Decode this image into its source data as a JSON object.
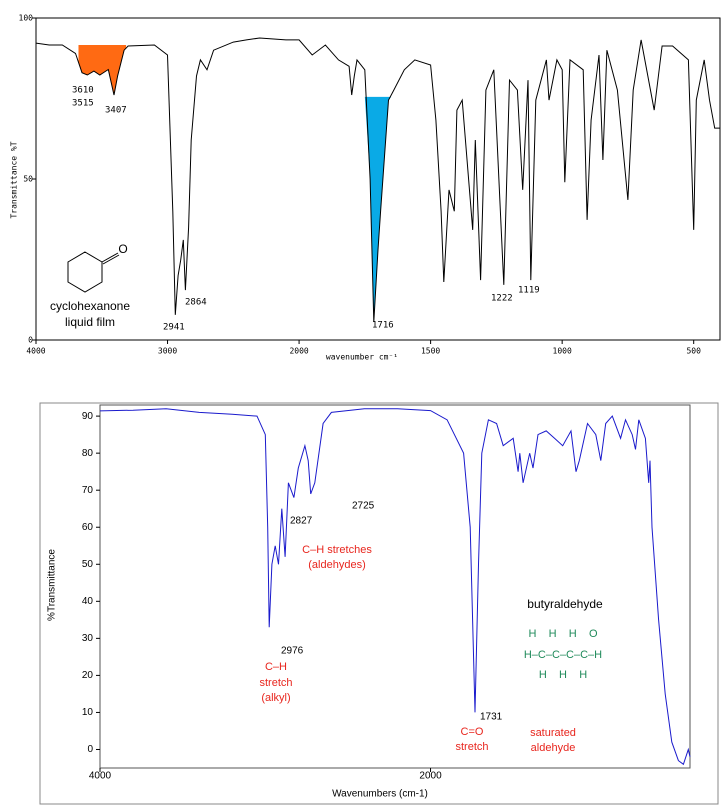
{
  "chart_data": [
    {
      "type": "line",
      "y_label": "Transmittance %T",
      "x_label": "wavenumber cm⁻¹",
      "xlim": [
        4000,
        400
      ],
      "ylim": [
        0,
        100
      ],
      "x_break": 2000,
      "xticks": [
        4000,
        3000,
        2000,
        1500,
        1000,
        500
      ],
      "yticks": [
        0,
        50,
        100
      ],
      "color": "#000000",
      "x": [
        4000,
        3900,
        3800,
        3700,
        3650,
        3610,
        3560,
        3515,
        3450,
        3407,
        3380,
        3330,
        3300,
        3100,
        3000,
        2960,
        2941,
        2920,
        2900,
        2880,
        2864,
        2840,
        2820,
        2780,
        2750,
        2700,
        2650,
        2500,
        2400,
        2300,
        2100,
        2000,
        1950,
        1900,
        1850,
        1810,
        1800,
        1790,
        1780,
        1750,
        1730,
        1716,
        1700,
        1690,
        1660,
        1640,
        1600,
        1560,
        1500,
        1480,
        1460,
        1450,
        1430,
        1410,
        1400,
        1380,
        1340,
        1330,
        1310,
        1290,
        1260,
        1222,
        1200,
        1170,
        1150,
        1130,
        1119,
        1100,
        1060,
        1050,
        1020,
        1000,
        990,
        970,
        920,
        905,
        890,
        860,
        845,
        830,
        790,
        750,
        730,
        700,
        650,
        620,
        580,
        520,
        500,
        490,
        460,
        440,
        420,
        400
      ],
      "values": [
        92.2,
        91.6,
        91.6,
        89,
        83,
        82.3,
        83.5,
        82.3,
        84,
        76.1,
        82,
        90,
        91.3,
        91.6,
        88.5,
        40,
        7.8,
        20,
        24.8,
        31.1,
        15.5,
        35,
        62.1,
        82,
        87,
        83.9,
        90,
        92.5,
        93.2,
        93.8,
        93.2,
        93.2,
        88.5,
        91.6,
        87,
        85,
        76.1,
        82,
        87,
        83.9,
        50,
        5.6,
        28,
        40,
        74.5,
        77.6,
        83.9,
        87,
        85.4,
        68.3,
        40,
        18,
        46.6,
        40,
        71.4,
        74.5,
        34.2,
        62.1,
        18.6,
        77.6,
        83.9,
        17.1,
        80.7,
        77.6,
        46.6,
        80.7,
        18.6,
        74.5,
        87,
        74.5,
        87,
        83.9,
        49,
        87,
        83.9,
        37.3,
        68.3,
        88.5,
        55.9,
        90,
        77.6,
        43.5,
        77.6,
        93.2,
        71.4,
        91.3,
        91.3,
        87,
        34.2,
        74.5,
        87,
        74.5,
        65.8,
        65.8
      ],
      "highlights": [
        {
          "from": 3677,
          "to": 3315,
          "level": 91.6,
          "color": "#ff6a13"
        },
        {
          "from": 1763,
          "to": 1650,
          "level": 75.5,
          "color": "#0aaae6"
        }
      ],
      "annotations": [
        {
          "text": "3610"
        },
        {
          "text": "3515"
        },
        {
          "text": "3407"
        },
        {
          "text": "2941"
        },
        {
          "text": "2864"
        },
        {
          "text": "1716"
        },
        {
          "text": "1222"
        },
        {
          "text": "1119"
        },
        {
          "text": "cyclohexanone"
        },
        {
          "text": "liquid film"
        },
        {
          "text": "O"
        }
      ]
    },
    {
      "type": "line",
      "y_label": "%Transmittance",
      "x_label": "Wavenumbers (cm-1)",
      "xlim": [
        4000,
        430
      ],
      "ylim": [
        -5,
        93
      ],
      "xticks": [
        4000,
        2000
      ],
      "yticks": [
        0,
        10,
        20,
        30,
        40,
        50,
        60,
        70,
        80,
        90
      ],
      "color": "#1a1acc",
      "x": [
        4000,
        3800,
        3600,
        3400,
        3200,
        3050,
        3000,
        2985,
        2976,
        2960,
        2940,
        2920,
        2900,
        2880,
        2860,
        2827,
        2800,
        2760,
        2740,
        2725,
        2700,
        2650,
        2600,
        2400,
        2200,
        2000,
        1900,
        1800,
        1760,
        1731,
        1710,
        1690,
        1650,
        1600,
        1560,
        1500,
        1470,
        1460,
        1440,
        1400,
        1380,
        1350,
        1300,
        1250,
        1200,
        1150,
        1120,
        1100,
        1050,
        1000,
        970,
        940,
        900,
        850,
        820,
        780,
        760,
        740,
        700,
        680,
        672,
        660,
        620,
        580,
        540,
        500,
        470,
        440,
        430
      ],
      "values": [
        91.4,
        91.6,
        92,
        91,
        90.5,
        90,
        85,
        60,
        33,
        50,
        55,
        50,
        65,
        52,
        72,
        68,
        76,
        82,
        78,
        69,
        72,
        88,
        91,
        92,
        92,
        91.5,
        89,
        80,
        60,
        10,
        50,
        80,
        89,
        88,
        82,
        84,
        75,
        80,
        72,
        80,
        76,
        85,
        86,
        84,
        82,
        86,
        75,
        78,
        88,
        85,
        78,
        88,
        90,
        84,
        89,
        85,
        81,
        89,
        84,
        72,
        78,
        60,
        35,
        15,
        2,
        -3,
        -4,
        0,
        -2
      ],
      "annotations": [
        {
          "text": "2725",
          "color": "#000000"
        },
        {
          "text": "2827",
          "color": "#000000"
        },
        {
          "text": "2976",
          "color": "#000000"
        },
        {
          "text": "1731",
          "color": "#000000"
        },
        {
          "text": "C–H stretches",
          "color": "#e8261e"
        },
        {
          "text": "(aldehydes)",
          "color": "#e8261e"
        },
        {
          "text": "C–H",
          "color": "#e8261e"
        },
        {
          "text": "stretch",
          "color": "#e8261e"
        },
        {
          "text": "(alkyl)",
          "color": "#e8261e"
        },
        {
          "text": "C=O",
          "color": "#e8261e"
        },
        {
          "text": "stretch",
          "color": "#e8261e"
        },
        {
          "text": "saturated",
          "color": "#e8261e"
        },
        {
          "text": "aldehyde",
          "color": "#e8261e"
        },
        {
          "text": "butyraldehyde",
          "color": "#000000"
        },
        {
          "text": "H    H    H    O",
          "color": "#1f8a5a"
        },
        {
          "text": "H–C–C–C–C–H",
          "color": "#1f8a5a"
        },
        {
          "text": "H    H    H",
          "color": "#1f8a5a"
        }
      ]
    }
  ]
}
